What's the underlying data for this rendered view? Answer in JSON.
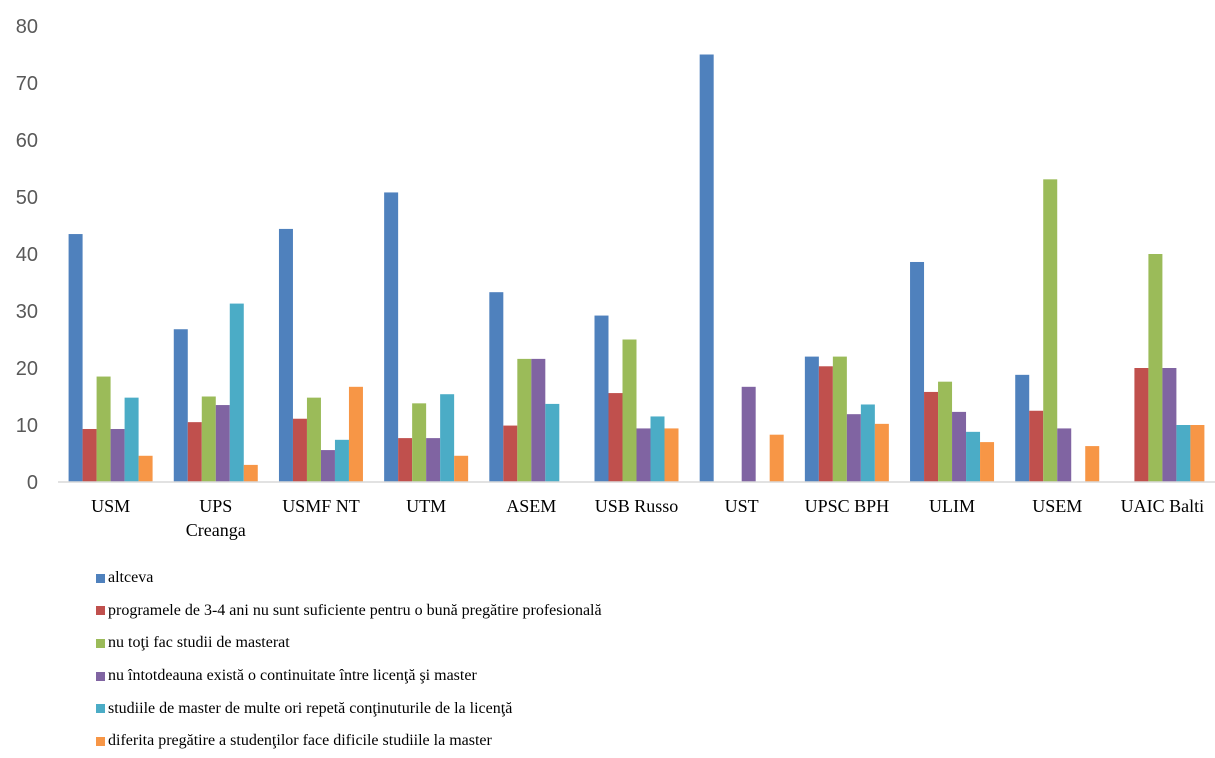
{
  "chart_data": {
    "type": "bar",
    "title": "",
    "xlabel": "",
    "ylabel": "",
    "ylim": [
      0,
      80
    ],
    "yticks": [
      0,
      10,
      20,
      30,
      40,
      50,
      60,
      70,
      80
    ],
    "grid": false,
    "legend_position": "bottom",
    "categories": [
      [
        "USM"
      ],
      [
        "UPS",
        "Creanga"
      ],
      [
        "USMF NT"
      ],
      [
        "UTM"
      ],
      [
        "ASEM"
      ],
      [
        "USB Russo"
      ],
      [
        "UST"
      ],
      [
        "UPSC BPH"
      ],
      [
        "ULIM"
      ],
      [
        "USEM"
      ],
      [
        "UAIC Balti"
      ]
    ],
    "series": [
      {
        "name": "altceva",
        "color": "#4f81bd",
        "values": [
          43.5,
          26.8,
          44.4,
          50.8,
          33.3,
          29.2,
          75.0,
          22.0,
          38.6,
          18.8,
          0
        ]
      },
      {
        "name": "programele de 3-4 ani nu sunt suficiente pentru o bună pregătire profesională",
        "color": "#c0504d",
        "values": [
          9.3,
          10.5,
          11.1,
          7.7,
          9.9,
          15.6,
          0,
          20.3,
          15.8,
          12.5,
          20.0
        ]
      },
      {
        "name": "nu toţi fac studii de masterat",
        "color": "#9bbb59",
        "values": [
          18.5,
          15.0,
          14.8,
          13.8,
          21.6,
          25.0,
          0,
          22.0,
          17.6,
          53.1,
          40.0
        ]
      },
      {
        "name": "nu întotdeauna există o continuitate între licenţă şi master",
        "color": "#8064a2",
        "values": [
          9.3,
          13.5,
          5.6,
          7.7,
          21.6,
          9.4,
          16.7,
          11.9,
          12.3,
          9.4,
          20.0
        ]
      },
      {
        "name": "studiile de master de multe ori repetă conţinuturile de la licenţă",
        "color": "#4bacc6",
        "values": [
          14.8,
          31.3,
          7.4,
          15.4,
          13.7,
          11.5,
          0,
          13.6,
          8.8,
          0,
          10.0
        ]
      },
      {
        "name": "diferita pregătire a studenţilor face dificile studiile la master",
        "color": "#f79646",
        "values": [
          4.6,
          3.0,
          16.7,
          4.6,
          0,
          9.4,
          8.3,
          10.2,
          7.0,
          6.3,
          10.0
        ]
      }
    ]
  }
}
